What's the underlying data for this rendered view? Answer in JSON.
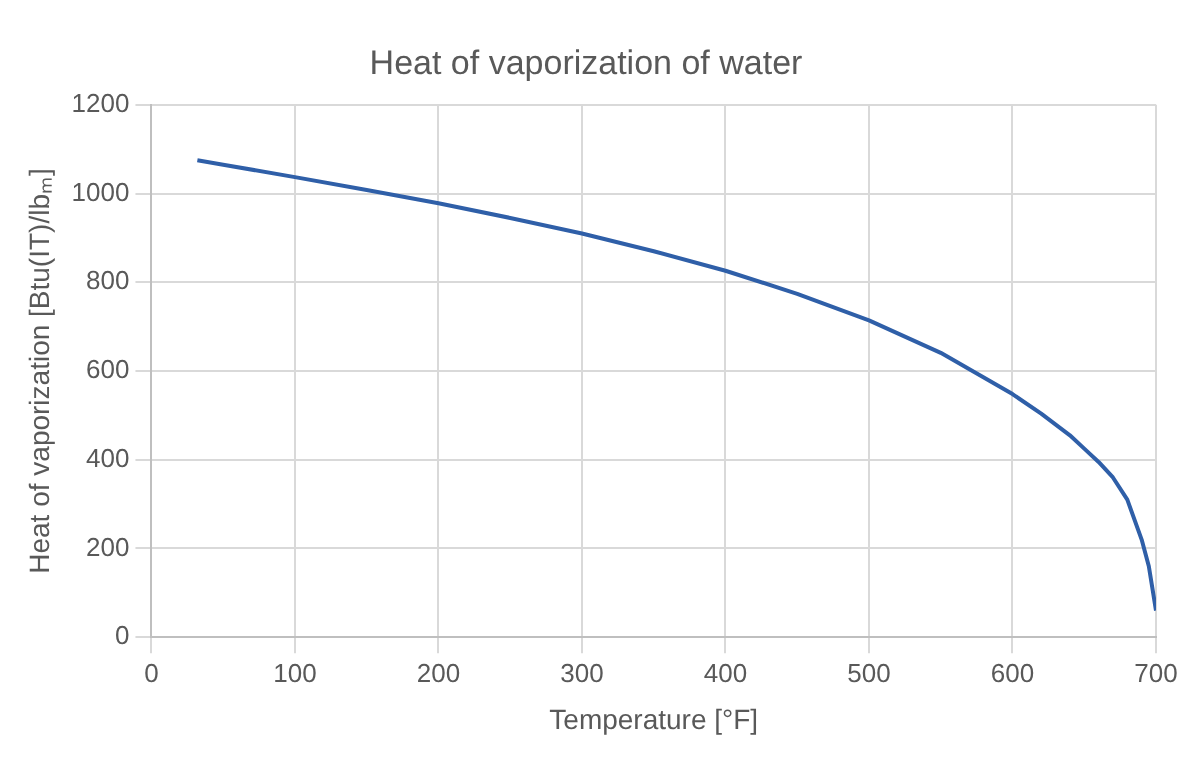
{
  "chart_data": {
    "type": "line",
    "title": "Heat of vaporization of water",
    "xlabel": "Temperature [°F]",
    "ylabel": "Heat of vaporization [Btu(IT)/lbₘ]",
    "x": [
      32,
      50,
      100,
      150,
      200,
      250,
      300,
      350,
      400,
      450,
      500,
      550,
      600,
      620,
      640,
      650,
      660,
      670,
      680,
      690,
      695,
      700
    ],
    "series": [
      {
        "color": "#2f5fa8",
        "values": [
          1075,
          1065,
          1037,
          1008,
          978,
          945,
          910,
          870,
          826,
          774,
          714,
          641,
          548,
          504,
          455,
          425,
          395,
          360,
          310,
          220,
          160,
          60
        ]
      }
    ],
    "xlim": [
      0,
      700
    ],
    "xticks": [
      0,
      100,
      200,
      300,
      400,
      500,
      600,
      700
    ],
    "ylim": [
      0,
      1200
    ],
    "yticks": [
      0,
      200,
      400,
      600,
      800,
      1000,
      1200
    ],
    "grid": true,
    "legend": false,
    "marker": "none",
    "line_style": "solid"
  }
}
